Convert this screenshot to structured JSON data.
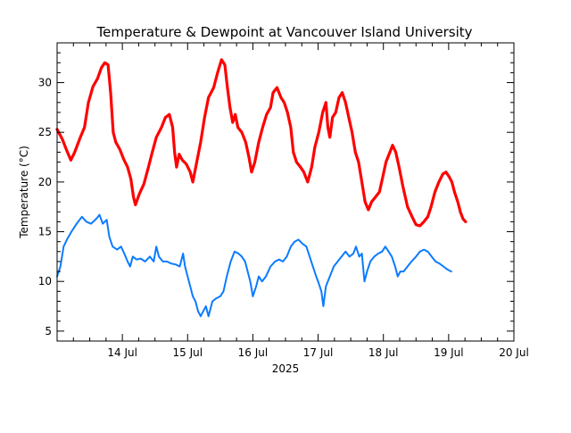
{
  "chart_data": {
    "type": "line",
    "title": "Temperature & Dewpoint at Vancouver Island University",
    "ylabel": "Temperature (°C)",
    "xlabel": "2025",
    "xlim": [
      13.0,
      20.0
    ],
    "ylim": [
      4.0,
      34.0
    ],
    "x_ticks": [
      {
        "value": 14,
        "label": "14 Jul"
      },
      {
        "value": 15,
        "label": "15 Jul"
      },
      {
        "value": 16,
        "label": "16 Jul"
      },
      {
        "value": 17,
        "label": "17 Jul"
      },
      {
        "value": 18,
        "label": "18 Jul"
      },
      {
        "value": 19,
        "label": "19 Jul"
      },
      {
        "value": 20,
        "label": "20 Jul"
      }
    ],
    "y_ticks": [
      {
        "value": 5,
        "label": "5"
      },
      {
        "value": 10,
        "label": "10"
      },
      {
        "value": 15,
        "label": "15"
      },
      {
        "value": 20,
        "label": "20"
      },
      {
        "value": 25,
        "label": "25"
      },
      {
        "value": 30,
        "label": "30"
      }
    ],
    "grid": false,
    "series": [
      {
        "color": "#ff0000",
        "points": [
          [
            13.0,
            25.3
          ],
          [
            13.08,
            24.3
          ],
          [
            13.14,
            23.3
          ],
          [
            13.21,
            22.2
          ],
          [
            13.27,
            23.0
          ],
          [
            13.35,
            24.4
          ],
          [
            13.42,
            25.5
          ],
          [
            13.48,
            28.0
          ],
          [
            13.55,
            29.6
          ],
          [
            13.62,
            30.4
          ],
          [
            13.68,
            31.5
          ],
          [
            13.73,
            32.0
          ],
          [
            13.78,
            31.8
          ],
          [
            13.82,
            29.0
          ],
          [
            13.86,
            25.0
          ],
          [
            13.9,
            24.0
          ],
          [
            13.96,
            23.3
          ],
          [
            14.02,
            22.3
          ],
          [
            14.08,
            21.5
          ],
          [
            14.13,
            20.3
          ],
          [
            14.17,
            18.5
          ],
          [
            14.2,
            17.7
          ],
          [
            14.26,
            18.8
          ],
          [
            14.33,
            19.8
          ],
          [
            14.4,
            21.5
          ],
          [
            14.45,
            22.8
          ],
          [
            14.52,
            24.5
          ],
          [
            14.6,
            25.5
          ],
          [
            14.66,
            26.5
          ],
          [
            14.72,
            26.8
          ],
          [
            14.77,
            25.5
          ],
          [
            14.8,
            23.0
          ],
          [
            14.83,
            21.5
          ],
          [
            14.87,
            22.8
          ],
          [
            14.92,
            22.2
          ],
          [
            14.98,
            21.8
          ],
          [
            15.04,
            21.0
          ],
          [
            15.08,
            20.0
          ],
          [
            15.14,
            22.0
          ],
          [
            15.2,
            24.0
          ],
          [
            15.26,
            26.5
          ],
          [
            15.32,
            28.5
          ],
          [
            15.4,
            29.5
          ],
          [
            15.46,
            31.0
          ],
          [
            15.52,
            32.3
          ],
          [
            15.57,
            31.8
          ],
          [
            15.61,
            29.5
          ],
          [
            15.65,
            27.5
          ],
          [
            15.69,
            26.0
          ],
          [
            15.73,
            26.8
          ],
          [
            15.77,
            25.5
          ],
          [
            15.83,
            25.0
          ],
          [
            15.89,
            24.0
          ],
          [
            15.94,
            22.5
          ],
          [
            15.98,
            21.0
          ],
          [
            16.03,
            22.0
          ],
          [
            16.09,
            24.0
          ],
          [
            16.15,
            25.5
          ],
          [
            16.21,
            26.8
          ],
          [
            16.27,
            27.5
          ],
          [
            16.31,
            29.0
          ],
          [
            16.37,
            29.5
          ],
          [
            16.43,
            28.5
          ],
          [
            16.48,
            28.0
          ],
          [
            16.53,
            27.0
          ],
          [
            16.58,
            25.5
          ],
          [
            16.62,
            23.0
          ],
          [
            16.67,
            22.0
          ],
          [
            16.73,
            21.5
          ],
          [
            16.78,
            21.0
          ],
          [
            16.84,
            20.0
          ],
          [
            16.9,
            21.5
          ],
          [
            16.95,
            23.5
          ],
          [
            17.01,
            25.0
          ],
          [
            17.07,
            27.0
          ],
          [
            17.12,
            28.0
          ],
          [
            17.15,
            25.5
          ],
          [
            17.18,
            24.5
          ],
          [
            17.22,
            26.5
          ],
          [
            17.27,
            27.0
          ],
          [
            17.32,
            28.5
          ],
          [
            17.37,
            29.0
          ],
          [
            17.42,
            28.0
          ],
          [
            17.47,
            26.5
          ],
          [
            17.52,
            25.0
          ],
          [
            17.57,
            23.0
          ],
          [
            17.62,
            22.0
          ],
          [
            17.67,
            20.0
          ],
          [
            17.72,
            18.0
          ],
          [
            17.77,
            17.2
          ],
          [
            17.82,
            18.0
          ],
          [
            17.88,
            18.5
          ],
          [
            17.94,
            19.0
          ],
          [
            17.99,
            20.5
          ],
          [
            18.04,
            22.0
          ],
          [
            18.1,
            23.0
          ],
          [
            18.14,
            23.7
          ],
          [
            18.19,
            23.0
          ],
          [
            18.24,
            21.5
          ],
          [
            18.3,
            19.5
          ],
          [
            18.37,
            17.5
          ],
          [
            18.44,
            16.5
          ],
          [
            18.5,
            15.7
          ],
          [
            18.56,
            15.6
          ],
          [
            18.62,
            16.0
          ],
          [
            18.68,
            16.5
          ],
          [
            18.73,
            17.5
          ],
          [
            18.79,
            19.0
          ],
          [
            18.85,
            20.0
          ],
          [
            18.91,
            20.8
          ],
          [
            18.96,
            21.0
          ],
          [
            19.01,
            20.5
          ],
          [
            19.05,
            20.0
          ],
          [
            19.09,
            19.0
          ],
          [
            19.14,
            18.0
          ],
          [
            19.18,
            17.0
          ],
          [
            19.22,
            16.3
          ],
          [
            19.26,
            16.0
          ]
        ]
      },
      {
        "color": "#0b7bff",
        "points": [
          [
            13.0,
            10.5
          ],
          [
            13.05,
            11.5
          ],
          [
            13.1,
            13.5
          ],
          [
            13.15,
            14.2
          ],
          [
            13.22,
            15.0
          ],
          [
            13.3,
            15.8
          ],
          [
            13.38,
            16.5
          ],
          [
            13.45,
            16.0
          ],
          [
            13.52,
            15.8
          ],
          [
            13.6,
            16.3
          ],
          [
            13.65,
            16.7
          ],
          [
            13.7,
            15.8
          ],
          [
            13.76,
            16.2
          ],
          [
            13.8,
            14.5
          ],
          [
            13.85,
            13.5
          ],
          [
            13.92,
            13.2
          ],
          [
            13.98,
            13.5
          ],
          [
            14.03,
            12.8
          ],
          [
            14.08,
            12.0
          ],
          [
            14.12,
            11.5
          ],
          [
            14.16,
            12.5
          ],
          [
            14.22,
            12.2
          ],
          [
            14.28,
            12.3
          ],
          [
            14.35,
            12.0
          ],
          [
            14.42,
            12.5
          ],
          [
            14.48,
            12.0
          ],
          [
            14.52,
            13.5
          ],
          [
            14.56,
            12.5
          ],
          [
            14.62,
            12.0
          ],
          [
            14.68,
            12.0
          ],
          [
            14.75,
            11.8
          ],
          [
            14.82,
            11.7
          ],
          [
            14.88,
            11.5
          ],
          [
            14.93,
            12.8
          ],
          [
            14.96,
            11.5
          ],
          [
            15.0,
            10.5
          ],
          [
            15.04,
            9.5
          ],
          [
            15.08,
            8.5
          ],
          [
            15.12,
            8.0
          ],
          [
            15.16,
            7.0
          ],
          [
            15.2,
            6.5
          ],
          [
            15.24,
            7.0
          ],
          [
            15.28,
            7.5
          ],
          [
            15.32,
            6.5
          ],
          [
            15.38,
            8.0
          ],
          [
            15.44,
            8.3
          ],
          [
            15.5,
            8.5
          ],
          [
            15.55,
            9.0
          ],
          [
            15.6,
            10.5
          ],
          [
            15.66,
            12.0
          ],
          [
            15.72,
            13.0
          ],
          [
            15.78,
            12.8
          ],
          [
            15.83,
            12.5
          ],
          [
            15.88,
            12.0
          ],
          [
            15.92,
            11.0
          ],
          [
            15.96,
            10.0
          ],
          [
            16.0,
            8.5
          ],
          [
            16.05,
            9.5
          ],
          [
            16.09,
            10.5
          ],
          [
            16.14,
            10.0
          ],
          [
            16.2,
            10.5
          ],
          [
            16.27,
            11.5
          ],
          [
            16.34,
            12.0
          ],
          [
            16.4,
            12.2
          ],
          [
            16.46,
            12.0
          ],
          [
            16.52,
            12.5
          ],
          [
            16.58,
            13.5
          ],
          [
            16.64,
            14.0
          ],
          [
            16.7,
            14.2
          ],
          [
            16.76,
            13.8
          ],
          [
            16.82,
            13.5
          ],
          [
            16.87,
            12.5
          ],
          [
            16.92,
            11.5
          ],
          [
            16.97,
            10.5
          ],
          [
            17.01,
            9.8
          ],
          [
            17.05,
            9.0
          ],
          [
            17.08,
            7.5
          ],
          [
            17.12,
            9.5
          ],
          [
            17.18,
            10.5
          ],
          [
            17.24,
            11.5
          ],
          [
            17.3,
            12.0
          ],
          [
            17.36,
            12.5
          ],
          [
            17.42,
            13.0
          ],
          [
            17.48,
            12.5
          ],
          [
            17.54,
            12.8
          ],
          [
            17.58,
            13.5
          ],
          [
            17.63,
            12.5
          ],
          [
            17.67,
            12.8
          ],
          [
            17.71,
            10.0
          ],
          [
            17.75,
            11.0
          ],
          [
            17.8,
            12.0
          ],
          [
            17.86,
            12.5
          ],
          [
            17.92,
            12.8
          ],
          [
            17.98,
            13.0
          ],
          [
            18.03,
            13.5
          ],
          [
            18.08,
            13.0
          ],
          [
            18.13,
            12.5
          ],
          [
            18.18,
            11.5
          ],
          [
            18.22,
            10.5
          ],
          [
            18.26,
            11.0
          ],
          [
            18.31,
            11.0
          ],
          [
            18.37,
            11.5
          ],
          [
            18.43,
            12.0
          ],
          [
            18.5,
            12.5
          ],
          [
            18.56,
            13.0
          ],
          [
            18.62,
            13.2
          ],
          [
            18.68,
            13.0
          ],
          [
            18.74,
            12.5
          ],
          [
            18.8,
            12.0
          ],
          [
            18.86,
            11.8
          ],
          [
            18.92,
            11.5
          ],
          [
            18.98,
            11.2
          ],
          [
            19.04,
            11.0
          ]
        ]
      }
    ]
  }
}
